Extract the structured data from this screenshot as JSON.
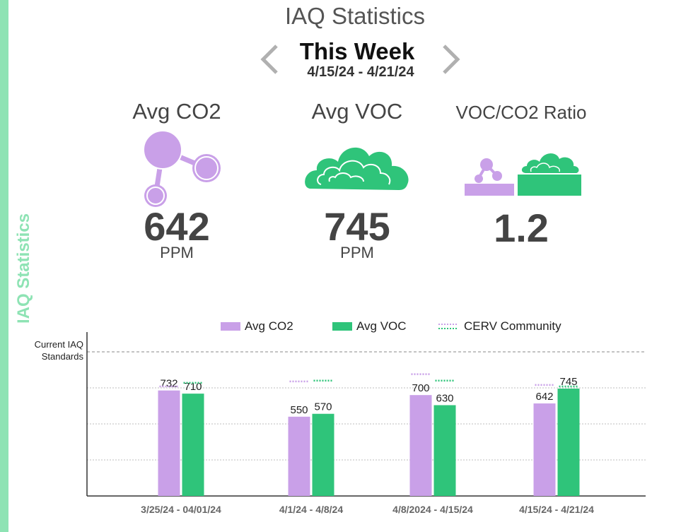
{
  "sidebar": {
    "label": "IAQ Statistics"
  },
  "header": {
    "title": "IAQ Statistics"
  },
  "period": {
    "label": "This Week",
    "range": "4/15/24 - 4/21/24"
  },
  "stats": {
    "co2": {
      "title": "Avg CO2",
      "value": "642",
      "unit": "PPM",
      "icon": "co2-molecule-icon"
    },
    "voc": {
      "title": "Avg VOC",
      "value": "745",
      "unit": "PPM",
      "icon": "voc-cloud-icon"
    },
    "ratio": {
      "title": "VOC/CO2 Ratio",
      "value": "1.2",
      "icon": "ratio-icon"
    }
  },
  "colors": {
    "co2": "#c9a0e8",
    "voc": "#2fc47a",
    "accent": "#8ee3b4",
    "arrow": "#b0b0b0"
  },
  "legend": {
    "co2": "Avg CO2",
    "voc": "Avg VOC",
    "community": "CERV Community"
  },
  "chart_data": {
    "type": "bar",
    "categories": [
      "3/25/24 - 04/01/24",
      "4/1/24 - 4/8/24",
      "4/8/2024 - 4/15/24",
      "4/15/24 - 4/21/24"
    ],
    "series": [
      {
        "name": "Avg CO2",
        "values": [
          732,
          550,
          700,
          642
        ]
      },
      {
        "name": "Avg VOC",
        "values": [
          710,
          570,
          630,
          745
        ]
      }
    ],
    "community": {
      "name": "CERV Community",
      "co2": [
        760,
        795,
        845,
        770
      ],
      "voc": [
        785,
        800,
        800,
        760
      ]
    },
    "standard": {
      "label": [
        "Current IAQ",
        "Standards"
      ],
      "value": 1000
    },
    "ylim": [
      0,
      1100
    ],
    "grid": true
  }
}
